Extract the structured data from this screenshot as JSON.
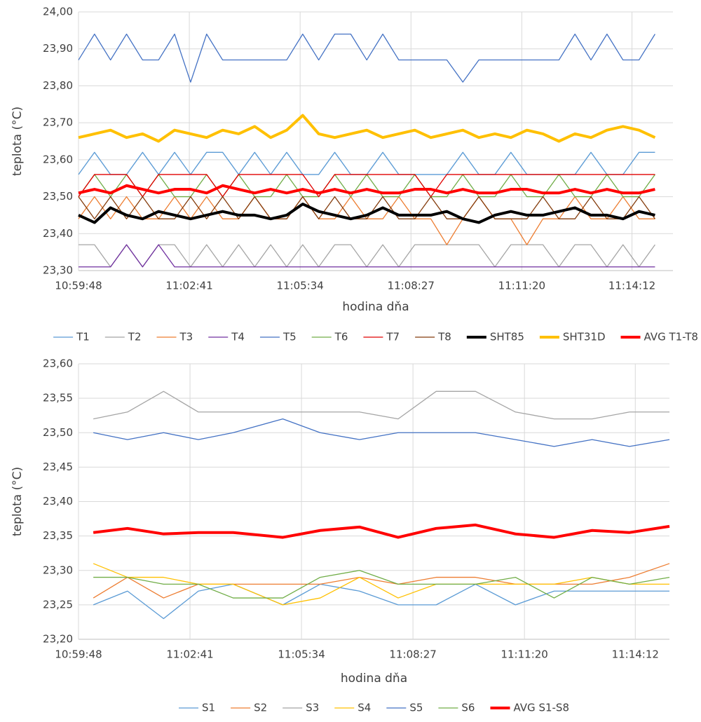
{
  "chart_data": [
    {
      "type": "line",
      "x_label": "hodina dňa",
      "y_label": "teplota (°C)",
      "x": [
        "10:59:48",
        "11:00:13",
        "11:00:38",
        "11:01:03",
        "11:01:28",
        "11:01:53",
        "11:02:18",
        "11:02:43",
        "11:03:08",
        "11:03:33",
        "11:03:58",
        "11:04:23",
        "11:04:48",
        "11:05:13",
        "11:05:38",
        "11:06:03",
        "11:06:28",
        "11:06:53",
        "11:07:18",
        "11:07:43",
        "11:08:08",
        "11:08:33",
        "11:08:58",
        "11:09:23",
        "11:09:48",
        "11:10:13",
        "11:10:38",
        "11:11:03",
        "11:11:28",
        "11:11:53",
        "11:12:18",
        "11:12:43",
        "11:13:08",
        "11:13:33",
        "11:13:58",
        "11:14:23",
        "11:14:48"
      ],
      "xlim": [
        "10:59:48",
        "11:15:16"
      ],
      "xticks": [
        "10:59:48",
        "11:02:41",
        "11:05:34",
        "11:08:27",
        "11:11:20",
        "11:14:12"
      ],
      "ylim": [
        23.3,
        24.0
      ],
      "yticks": [
        {
          "value": 23.3,
          "label": "23,30"
        },
        {
          "value": 23.4,
          "label": "23,40"
        },
        {
          "value": 23.5,
          "label": "23,50"
        },
        {
          "value": 23.6,
          "label": "23,60"
        },
        {
          "value": 23.7,
          "label": "23,70"
        },
        {
          "value": 23.8,
          "label": "23,80"
        },
        {
          "value": 23.9,
          "label": "23,90"
        },
        {
          "value": 24.0,
          "label": "24,00"
        }
      ],
      "grid": true,
      "legend": "bottom",
      "series": [
        {
          "name": "T1",
          "color": "#5b9bd5",
          "linewidth": 1.3,
          "values": [
            23.56,
            23.62,
            23.56,
            23.56,
            23.62,
            23.56,
            23.62,
            23.56,
            23.62,
            23.62,
            23.56,
            23.62,
            23.56,
            23.62,
            23.56,
            23.56,
            23.62,
            23.56,
            23.56,
            23.62,
            23.56,
            23.56,
            23.56,
            23.56,
            23.62,
            23.56,
            23.56,
            23.62,
            23.56,
            23.56,
            23.56,
            23.56,
            23.62,
            23.56,
            23.56,
            23.62,
            23.62
          ]
        },
        {
          "name": "T2",
          "color": "#a5a5a5",
          "linewidth": 1.3,
          "values": [
            23.37,
            23.37,
            23.31,
            23.37,
            23.31,
            23.37,
            23.37,
            23.31,
            23.37,
            23.31,
            23.37,
            23.31,
            23.37,
            23.31,
            23.37,
            23.31,
            23.37,
            23.37,
            23.31,
            23.37,
            23.31,
            23.37,
            23.37,
            23.37,
            23.37,
            23.37,
            23.31,
            23.37,
            23.37,
            23.37,
            23.31,
            23.37,
            23.37,
            23.31,
            23.37,
            23.31,
            23.37
          ]
        },
        {
          "name": "T3",
          "color": "#ed7d31",
          "linewidth": 1.3,
          "values": [
            23.44,
            23.5,
            23.44,
            23.5,
            23.44,
            23.44,
            23.5,
            23.44,
            23.5,
            23.44,
            23.44,
            23.5,
            23.44,
            23.44,
            23.5,
            23.44,
            23.44,
            23.5,
            23.44,
            23.44,
            23.5,
            23.44,
            23.44,
            23.37,
            23.44,
            23.5,
            23.44,
            23.44,
            23.37,
            23.44,
            23.44,
            23.5,
            23.44,
            23.44,
            23.5,
            23.44,
            23.44
          ]
        },
        {
          "name": "T4",
          "color": "#7030a0",
          "linewidth": 1.3,
          "values": [
            23.31,
            23.31,
            23.31,
            23.37,
            23.31,
            23.37,
            23.31,
            23.31,
            23.31,
            23.31,
            23.31,
            23.31,
            23.31,
            23.31,
            23.31,
            23.31,
            23.31,
            23.31,
            23.31,
            23.31,
            23.31,
            23.31,
            23.31,
            23.31,
            23.31,
            23.31,
            23.31,
            23.31,
            23.31,
            23.31,
            23.31,
            23.31,
            23.31,
            23.31,
            23.31,
            23.31,
            23.31
          ]
        },
        {
          "name": "T5",
          "color": "#4472c4",
          "linewidth": 1.3,
          "values": [
            23.87,
            23.94,
            23.87,
            23.94,
            23.87,
            23.87,
            23.94,
            23.81,
            23.94,
            23.87,
            23.87,
            23.87,
            23.87,
            23.87,
            23.94,
            23.87,
            23.94,
            23.94,
            23.87,
            23.94,
            23.87,
            23.87,
            23.87,
            23.87,
            23.81,
            23.87,
            23.87,
            23.87,
            23.87,
            23.87,
            23.87,
            23.94,
            23.87,
            23.94,
            23.87,
            23.87,
            23.94
          ]
        },
        {
          "name": "T6",
          "color": "#70ad47",
          "linewidth": 1.3,
          "values": [
            23.5,
            23.56,
            23.5,
            23.56,
            23.5,
            23.56,
            23.5,
            23.5,
            23.56,
            23.5,
            23.56,
            23.5,
            23.5,
            23.56,
            23.5,
            23.5,
            23.56,
            23.5,
            23.56,
            23.5,
            23.5,
            23.56,
            23.5,
            23.5,
            23.56,
            23.5,
            23.5,
            23.56,
            23.5,
            23.5,
            23.56,
            23.5,
            23.5,
            23.56,
            23.5,
            23.5,
            23.56
          ]
        },
        {
          "name": "T7",
          "color": "#e00000",
          "linewidth": 1.3,
          "values": [
            23.5,
            23.56,
            23.56,
            23.56,
            23.5,
            23.56,
            23.56,
            23.56,
            23.56,
            23.5,
            23.56,
            23.56,
            23.56,
            23.56,
            23.56,
            23.5,
            23.56,
            23.56,
            23.56,
            23.56,
            23.56,
            23.56,
            23.5,
            23.56,
            23.56,
            23.56,
            23.56,
            23.56,
            23.56,
            23.56,
            23.56,
            23.56,
            23.56,
            23.56,
            23.56,
            23.56,
            23.56
          ]
        },
        {
          "name": "T8",
          "color": "#843c0c",
          "linewidth": 1.3,
          "values": [
            23.5,
            23.44,
            23.5,
            23.44,
            23.5,
            23.44,
            23.44,
            23.5,
            23.44,
            23.5,
            23.44,
            23.5,
            23.44,
            23.44,
            23.5,
            23.44,
            23.5,
            23.44,
            23.44,
            23.5,
            23.44,
            23.44,
            23.5,
            23.44,
            23.44,
            23.5,
            23.44,
            23.44,
            23.44,
            23.5,
            23.44,
            23.44,
            23.5,
            23.44,
            23.44,
            23.5,
            23.44
          ]
        },
        {
          "name": "SHT85",
          "color": "#000000",
          "linewidth": 4,
          "values": [
            23.45,
            23.43,
            23.47,
            23.45,
            23.44,
            23.46,
            23.45,
            23.44,
            23.45,
            23.46,
            23.45,
            23.45,
            23.44,
            23.45,
            23.48,
            23.46,
            23.45,
            23.44,
            23.45,
            23.47,
            23.45,
            23.45,
            23.45,
            23.46,
            23.44,
            23.43,
            23.45,
            23.46,
            23.45,
            23.45,
            23.46,
            23.47,
            23.45,
            23.45,
            23.44,
            23.46,
            23.45
          ]
        },
        {
          "name": "SHT31D",
          "color": "#ffc000",
          "linewidth": 4,
          "values": [
            23.66,
            23.67,
            23.68,
            23.66,
            23.67,
            23.65,
            23.68,
            23.67,
            23.66,
            23.68,
            23.67,
            23.69,
            23.66,
            23.68,
            23.72,
            23.67,
            23.66,
            23.67,
            23.68,
            23.66,
            23.67,
            23.68,
            23.66,
            23.67,
            23.68,
            23.66,
            23.67,
            23.66,
            23.68,
            23.67,
            23.65,
            23.67,
            23.66,
            23.68,
            23.69,
            23.68,
            23.66
          ]
        },
        {
          "name": "AVG T1-T8",
          "color": "#ff0000",
          "linewidth": 4,
          "values": [
            23.51,
            23.52,
            23.51,
            23.53,
            23.52,
            23.51,
            23.52,
            23.52,
            23.51,
            23.53,
            23.52,
            23.51,
            23.52,
            23.51,
            23.52,
            23.51,
            23.52,
            23.51,
            23.52,
            23.51,
            23.51,
            23.52,
            23.52,
            23.51,
            23.52,
            23.51,
            23.51,
            23.52,
            23.52,
            23.51,
            23.51,
            23.52,
            23.51,
            23.52,
            23.51,
            23.51,
            23.52
          ]
        }
      ]
    },
    {
      "type": "line",
      "x_label": "hodina dňa",
      "y_label": "teplota (°C)",
      "x": [
        "11:00:11",
        "11:01:04",
        "11:02:00",
        "11:02:54",
        "11:03:48",
        "11:05:05",
        "11:06:03",
        "11:07:04",
        "11:08:04",
        "11:09:03",
        "11:10:04",
        "11:11:06",
        "11:12:06",
        "11:13:05",
        "11:14:03",
        "11:15:05"
      ],
      "xlim": [
        "10:59:48",
        "11:15:05"
      ],
      "xticks": [
        "10:59:48",
        "11:02:41",
        "11:05:34",
        "11:08:27",
        "11:11:20",
        "11:14:12"
      ],
      "ylim": [
        23.2,
        23.6
      ],
      "yticks": [
        {
          "value": 23.2,
          "label": "23,20"
        },
        {
          "value": 23.25,
          "label": "23,25"
        },
        {
          "value": 23.3,
          "label": "23,30"
        },
        {
          "value": 23.35,
          "label": "23,35"
        },
        {
          "value": 23.4,
          "label": "23,40"
        },
        {
          "value": 23.45,
          "label": "23,45"
        },
        {
          "value": 23.5,
          "label": "23,50"
        },
        {
          "value": 23.55,
          "label": "23,55"
        },
        {
          "value": 23.6,
          "label": "23,60"
        }
      ],
      "grid": true,
      "legend": "bottom",
      "series": [
        {
          "name": "S1",
          "color": "#5b9bd5",
          "linewidth": 1.3,
          "values": [
            23.25,
            23.27,
            23.23,
            23.27,
            23.28,
            23.25,
            23.28,
            23.27,
            23.25,
            23.25,
            23.28,
            23.25,
            23.27,
            23.27,
            23.27,
            23.27
          ]
        },
        {
          "name": "S2",
          "color": "#ed7d31",
          "linewidth": 1.3,
          "values": [
            23.26,
            23.29,
            23.26,
            23.28,
            23.28,
            23.28,
            23.28,
            23.29,
            23.28,
            23.29,
            23.29,
            23.28,
            23.28,
            23.28,
            23.29,
            23.31
          ]
        },
        {
          "name": "S3",
          "color": "#a5a5a5",
          "linewidth": 1.3,
          "values": [
            23.52,
            23.53,
            23.56,
            23.53,
            23.53,
            23.53,
            23.53,
            23.53,
            23.52,
            23.56,
            23.56,
            23.53,
            23.52,
            23.52,
            23.53,
            23.53
          ]
        },
        {
          "name": "S4",
          "color": "#ffc000",
          "linewidth": 1.3,
          "values": [
            23.31,
            23.29,
            23.29,
            23.28,
            23.28,
            23.25,
            23.26,
            23.29,
            23.26,
            23.28,
            23.28,
            23.28,
            23.28,
            23.29,
            23.28,
            23.28
          ]
        },
        {
          "name": "S5",
          "color": "#4472c4",
          "linewidth": 1.3,
          "values": [
            23.5,
            23.49,
            23.5,
            23.49,
            23.5,
            23.52,
            23.5,
            23.49,
            23.5,
            23.5,
            23.5,
            23.49,
            23.48,
            23.49,
            23.48,
            23.49
          ]
        },
        {
          "name": "S6",
          "color": "#70ad47",
          "linewidth": 1.3,
          "values": [
            23.29,
            23.29,
            23.28,
            23.28,
            23.26,
            23.26,
            23.29,
            23.3,
            23.28,
            23.28,
            23.28,
            23.29,
            23.26,
            23.29,
            23.28,
            23.29
          ]
        },
        {
          "name": "AVG S1-S8",
          "color": "#ff0000",
          "linewidth": 4,
          "values": [
            23.355,
            23.361,
            23.353,
            23.355,
            23.355,
            23.348,
            23.358,
            23.363,
            23.348,
            23.361,
            23.366,
            23.353,
            23.348,
            23.358,
            23.355,
            23.364
          ]
        }
      ]
    }
  ]
}
